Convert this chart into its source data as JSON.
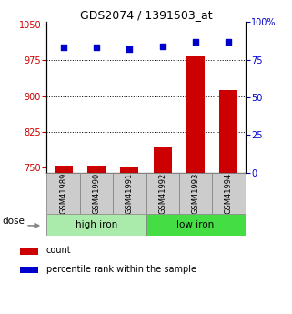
{
  "title": "GDS2074 / 1391503_at",
  "samples": [
    "GSM41989",
    "GSM41990",
    "GSM41991",
    "GSM41992",
    "GSM41993",
    "GSM41994"
  ],
  "bar_values": [
    755,
    754,
    751,
    795,
    983,
    913
  ],
  "scatter_values": [
    83,
    83,
    82,
    84,
    87,
    87
  ],
  "bar_color": "#cc0000",
  "scatter_color": "#0000cc",
  "ylim_left": [
    740,
    1055
  ],
  "ylim_right": [
    0,
    100
  ],
  "yticks_left": [
    750,
    825,
    900,
    975,
    1050
  ],
  "yticks_right": [
    0,
    25,
    50,
    75,
    100
  ],
  "ytick_labels_right": [
    "0",
    "25",
    "50",
    "75",
    "100%"
  ],
  "hlines": [
    975,
    900,
    825
  ],
  "dose_label": "dose",
  "legend_count": "count",
  "legend_percentile": "percentile rank within the sample",
  "background_color": "#ffffff",
  "high_iron_color": "#aaeaaa",
  "low_iron_color": "#44dd44",
  "sample_box_color": "#cccccc",
  "figsize": [
    3.21,
    3.45
  ],
  "dpi": 100
}
